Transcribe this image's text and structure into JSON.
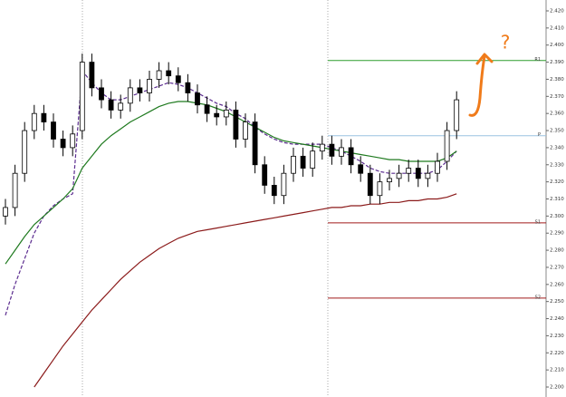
{
  "chart_data": {
    "type": "candlestick",
    "categories": [
      null,
      null,
      null,
      null,
      null,
      null,
      null,
      null,
      null,
      null,
      null,
      null,
      null,
      null,
      null,
      null,
      null,
      null,
      null,
      null,
      null,
      null,
      null,
      null,
      null,
      null,
      null,
      null,
      null,
      null,
      null,
      null,
      null,
      null,
      null,
      null,
      null,
      null,
      null,
      null,
      null,
      null,
      null,
      null,
      null,
      null,
      null,
      null
    ],
    "open": [
      2.3,
      2.305,
      2.325,
      2.35,
      2.36,
      2.355,
      2.345,
      2.34,
      2.35,
      2.39,
      2.375,
      2.368,
      2.362,
      2.366,
      2.375,
      2.372,
      2.38,
      2.385,
      2.382,
      2.378,
      2.372,
      2.365,
      2.36,
      2.358,
      2.362,
      2.345,
      2.355,
      2.33,
      2.318,
      2.312,
      2.325,
      2.335,
      2.328,
      2.338,
      2.342,
      2.335,
      2.34,
      2.33,
      2.325,
      2.312,
      2.32,
      2.322,
      2.325,
      2.328,
      2.322,
      2.325,
      2.332,
      2.35
    ],
    "high": [
      2.31,
      2.33,
      2.355,
      2.365,
      2.365,
      2.36,
      2.35,
      2.353,
      2.395,
      2.395,
      2.38,
      2.373,
      2.371,
      2.38,
      2.38,
      2.385,
      2.39,
      2.39,
      2.387,
      2.383,
      2.377,
      2.37,
      2.365,
      2.367,
      2.367,
      2.36,
      2.36,
      2.335,
      2.323,
      2.33,
      2.34,
      2.34,
      2.343,
      2.347,
      2.347,
      2.345,
      2.345,
      2.335,
      2.33,
      2.325,
      2.327,
      2.33,
      2.333,
      2.333,
      2.33,
      2.337,
      2.355,
      2.373
    ],
    "low": [
      2.295,
      2.3,
      2.32,
      2.345,
      2.35,
      2.34,
      2.335,
      2.335,
      2.345,
      2.37,
      2.363,
      2.357,
      2.357,
      2.361,
      2.367,
      2.367,
      2.375,
      2.377,
      2.373,
      2.367,
      2.36,
      2.355,
      2.353,
      2.353,
      2.34,
      2.34,
      2.325,
      2.313,
      2.307,
      2.307,
      2.32,
      2.323,
      2.323,
      2.333,
      2.33,
      2.33,
      2.325,
      2.32,
      2.307,
      2.307,
      2.315,
      2.317,
      2.32,
      2.317,
      2.317,
      2.32,
      2.327,
      2.345
    ],
    "close": [
      2.305,
      2.325,
      2.35,
      2.36,
      2.355,
      2.345,
      2.34,
      2.348,
      2.39,
      2.375,
      2.368,
      2.362,
      2.366,
      2.375,
      2.372,
      2.38,
      2.385,
      2.382,
      2.378,
      2.372,
      2.365,
      2.36,
      2.358,
      2.362,
      2.345,
      2.355,
      2.33,
      2.318,
      2.312,
      2.325,
      2.335,
      2.328,
      2.338,
      2.342,
      2.335,
      2.34,
      2.33,
      2.325,
      2.312,
      2.32,
      2.322,
      2.325,
      2.328,
      2.322,
      2.325,
      2.332,
      2.35,
      2.368
    ],
    "lines": [
      {
        "color": "#5b2c8f",
        "dashed": true,
        "values": [
          2.242,
          2.26,
          2.275,
          2.29,
          2.3,
          2.306,
          2.31,
          2.313,
          2.385,
          2.378,
          2.372,
          2.368,
          2.368,
          2.37,
          2.372,
          2.374,
          2.376,
          2.378,
          2.377,
          2.375,
          2.372,
          2.369,
          2.366,
          2.364,
          2.36,
          2.357,
          2.352,
          2.348,
          2.345,
          2.343,
          2.342,
          2.342,
          2.342,
          2.342,
          2.34,
          2.338,
          2.335,
          2.332,
          2.328,
          2.326,
          2.325,
          2.325,
          2.325,
          2.325,
          2.325,
          2.327,
          2.332,
          2.338
        ]
      },
      {
        "color": "#1f7a1f",
        "dashed": false,
        "values": [
          2.272,
          2.28,
          2.288,
          2.295,
          2.3,
          2.305,
          2.31,
          2.316,
          2.328,
          2.335,
          2.342,
          2.347,
          2.351,
          2.355,
          2.358,
          2.361,
          2.364,
          2.366,
          2.367,
          2.367,
          2.366,
          2.365,
          2.363,
          2.361,
          2.358,
          2.355,
          2.352,
          2.349,
          2.346,
          2.344,
          2.343,
          2.342,
          2.341,
          2.34,
          2.339,
          2.338,
          2.337,
          2.336,
          2.335,
          2.334,
          2.333,
          2.333,
          2.332,
          2.332,
          2.332,
          2.332,
          2.334,
          2.338
        ]
      },
      {
        "color": "#8b1a1a",
        "dashed": false,
        "values": [
          null,
          null,
          null,
          2.2,
          2.208,
          2.216,
          2.224,
          2.231,
          2.238,
          2.245,
          2.251,
          2.257,
          2.263,
          2.268,
          2.273,
          2.277,
          2.281,
          2.284,
          2.287,
          2.289,
          2.291,
          2.292,
          2.293,
          2.294,
          2.295,
          2.296,
          2.297,
          2.298,
          2.299,
          2.3,
          2.301,
          2.302,
          2.303,
          2.304,
          2.305,
          2.305,
          2.306,
          2.306,
          2.307,
          2.307,
          2.308,
          2.308,
          2.309,
          2.309,
          2.31,
          2.31,
          2.311,
          2.313
        ]
      }
    ],
    "levels": [
      {
        "label": "R1",
        "value": 2.391,
        "color": "#2e9e2e"
      },
      {
        "label": "P",
        "value": 2.347,
        "color": "#9cc3e0"
      },
      {
        "label": "S1",
        "value": 2.296,
        "color": "#a01a1a"
      },
      {
        "label": "S2",
        "value": 2.252,
        "color": "#a01a1a"
      }
    ],
    "annotations": [
      "?"
    ],
    "ylim": [
      2.2,
      2.42
    ],
    "yticks": [
      {
        "value": 2.42,
        "label": "2.420"
      },
      {
        "value": 2.41,
        "label": "2.410"
      },
      {
        "value": 2.4,
        "label": "2.400"
      },
      {
        "value": 2.39,
        "label": "2.390"
      },
      {
        "value": 2.38,
        "label": "2.380"
      },
      {
        "value": 2.37,
        "label": "2.370"
      },
      {
        "value": 2.36,
        "label": "2.360"
      },
      {
        "value": 2.35,
        "label": "2.350"
      },
      {
        "value": 2.34,
        "label": "2.340"
      },
      {
        "value": 2.33,
        "label": "2.330"
      },
      {
        "value": 2.32,
        "label": "2.320"
      },
      {
        "value": 2.31,
        "label": "2.310"
      },
      {
        "value": 2.3,
        "label": "2.300"
      },
      {
        "value": 2.29,
        "label": "2.290"
      },
      {
        "value": 2.28,
        "label": "2.280"
      },
      {
        "value": 2.27,
        "label": "2.270"
      },
      {
        "value": 2.26,
        "label": "2.260"
      },
      {
        "value": 2.25,
        "label": "2.250"
      },
      {
        "value": 2.24,
        "label": "2.240"
      },
      {
        "value": 2.23,
        "label": "2.230"
      },
      {
        "value": 2.22,
        "label": "2.220"
      },
      {
        "value": 2.21,
        "label": "2.210"
      },
      {
        "value": 2.2,
        "label": "2.200"
      }
    ]
  }
}
